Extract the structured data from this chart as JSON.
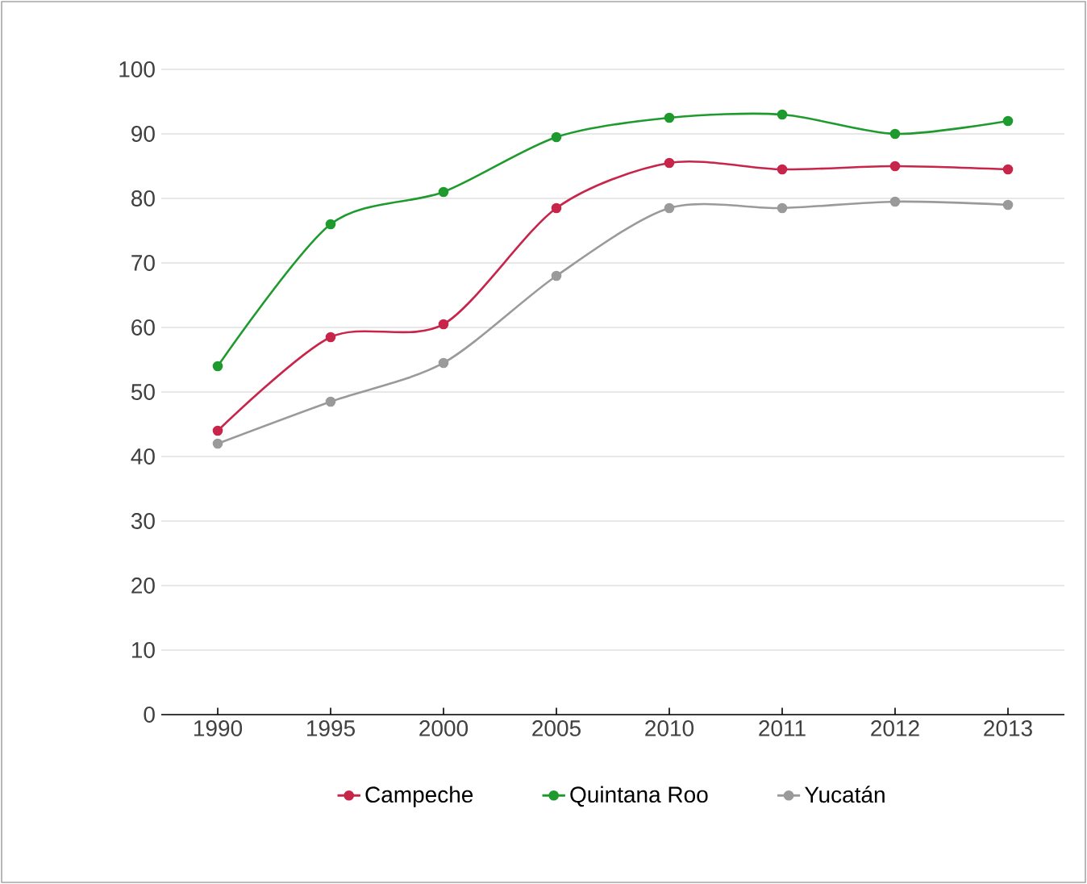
{
  "chart_data": {
    "type": "line",
    "categories": [
      "1990",
      "1995",
      "2000",
      "2005",
      "2010",
      "2011",
      "2012",
      "2013"
    ],
    "series": [
      {
        "name": "Campeche",
        "color": "#c8254a",
        "values": [
          44,
          58.5,
          60.5,
          78.5,
          85.5,
          84.5,
          85,
          84.5
        ]
      },
      {
        "name": "Quintana Roo",
        "color": "#1f9a2e",
        "values": [
          54,
          76,
          81,
          89.5,
          92.5,
          93,
          90,
          92
        ]
      },
      {
        "name": "Yucatán",
        "color": "#9a9a9a",
        "values": [
          42,
          48.5,
          54.5,
          68,
          78.5,
          78.5,
          79.5,
          79
        ]
      }
    ],
    "ylim": [
      0,
      100
    ],
    "yticks": [
      0,
      10,
      20,
      30,
      40,
      50,
      60,
      70,
      80,
      90,
      100
    ],
    "grid": "y",
    "legend": "bottom",
    "marker": "circle",
    "line_style": "solid"
  }
}
